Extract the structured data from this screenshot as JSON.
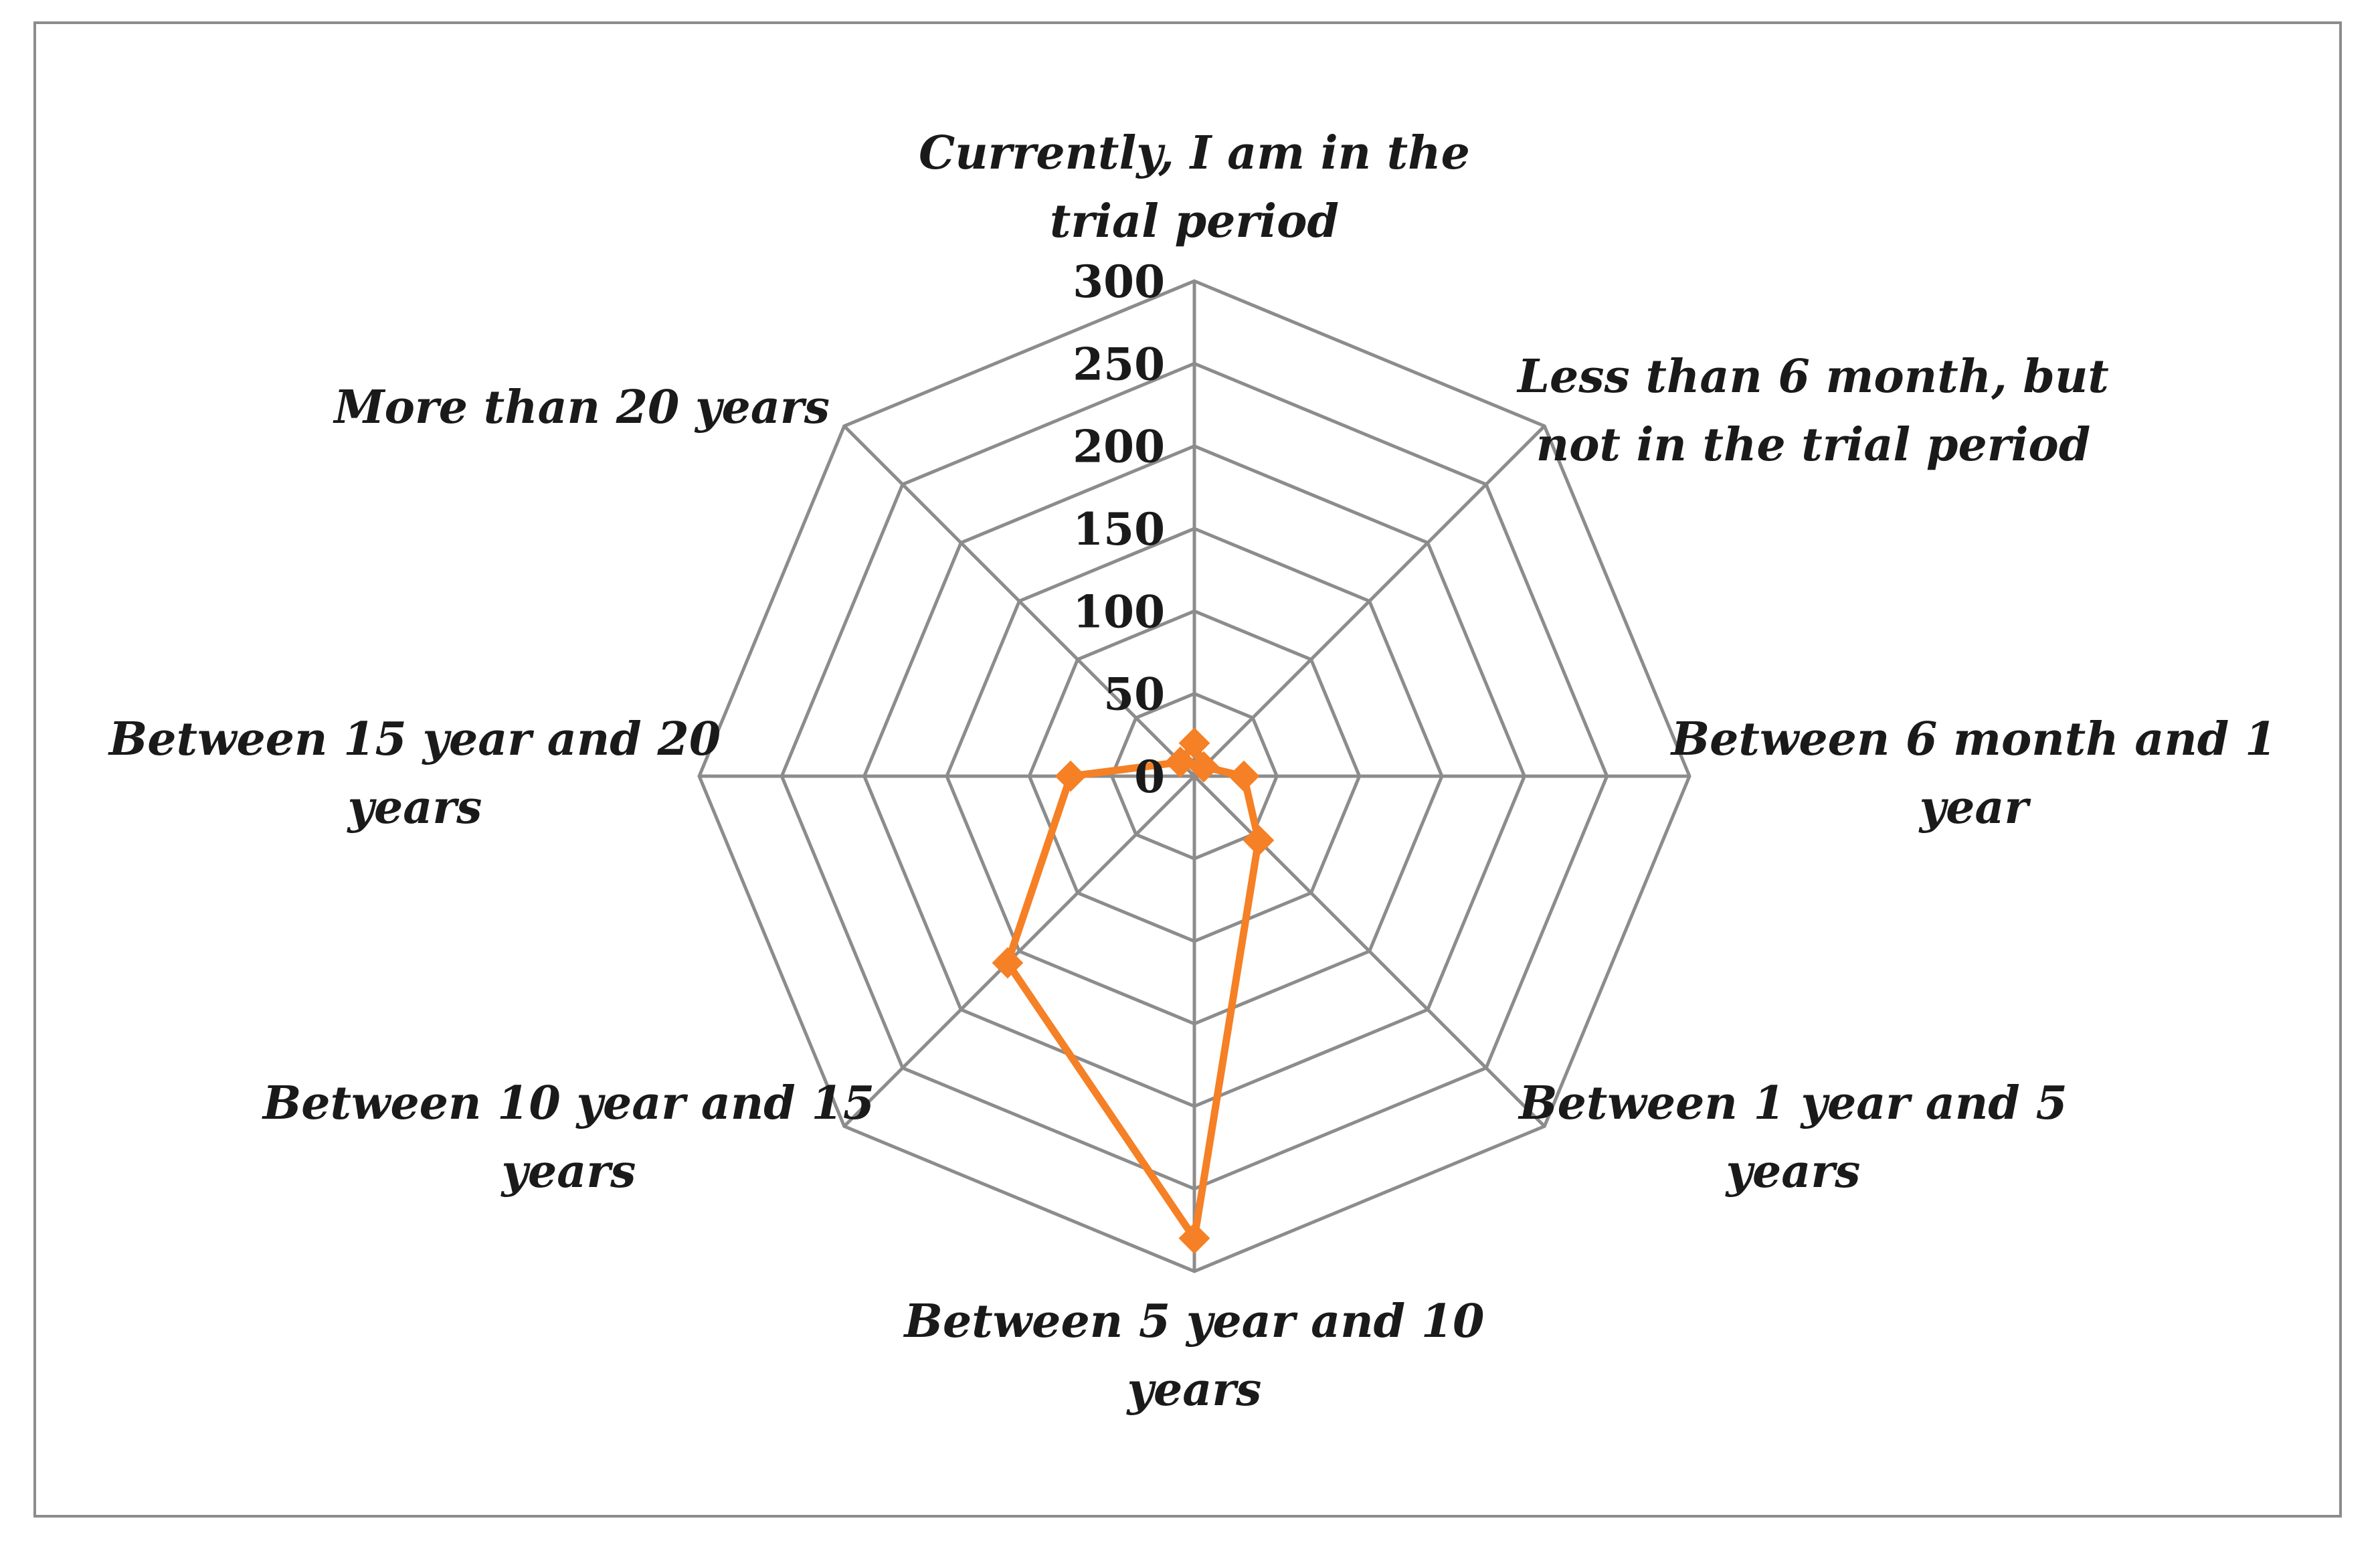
{
  "chart_data": {
    "type": "radar",
    "categories": [
      "Currently, I am in the trial period",
      "Less than 6 month, but not in the trial period",
      "Between 6 month and 1 year",
      "Between 1 year and 5 years",
      "Between 5 year and 10 years",
      "Between 10 year and 15 years",
      "Between 15 year and 20 years",
      "More than 20 years"
    ],
    "category_label_lines": [
      [
        "Currently, I am in the",
        "trial period"
      ],
      [
        "Less than 6 month, but",
        "not in the trial period"
      ],
      [
        "Between 6 month and 1",
        "year"
      ],
      [
        "Between 1 year and 5",
        "years"
      ],
      [
        "Between 5 year and 10",
        "years"
      ],
      [
        "Between 10 year and 15",
        "years"
      ],
      [
        "Between 15 year and 20",
        "years"
      ],
      [
        "More than 20 years"
      ]
    ],
    "series": [
      {
        "values": [
          20,
          8,
          30,
          55,
          280,
          160,
          75,
          12
        ],
        "color": "#f58025",
        "marker": "diamond"
      }
    ],
    "rlim": [
      0,
      300
    ],
    "ticks": [
      0,
      50,
      100,
      150,
      200,
      250,
      300
    ],
    "tick_labels": [
      "0",
      "50",
      "100",
      "150",
      "200",
      "250",
      "300"
    ],
    "grid": true,
    "grid_color": "#8c8c8c"
  }
}
